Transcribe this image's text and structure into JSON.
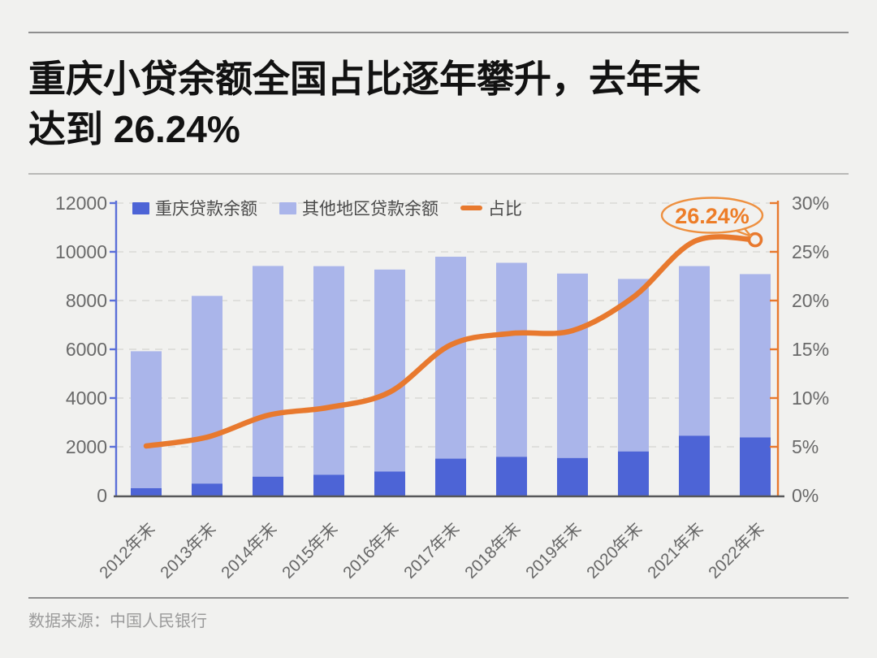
{
  "header": {
    "title_line1": "重庆小贷余额全国占比逐年攀升，去年末",
    "title_line2": "达到 26.24%"
  },
  "footer": {
    "source": "数据来源：中国人民银行"
  },
  "colors": {
    "background": "#f1f1ef",
    "bar_dark_blue": "#4d64d6",
    "bar_light_blue": "#aab5ea",
    "line_orange": "#e8792e",
    "callout_orange": "#ee9040",
    "axis_gray": "#57585a",
    "label_gray": "#696969",
    "grid_gray": "#d9d9d6"
  },
  "chart_data": {
    "type": "bar",
    "subtype": "stacked-bars-with-line-overlay",
    "categories": [
      "2012年末",
      "2013年末",
      "2014年末",
      "2015年末",
      "2016年末",
      "2017年末",
      "2018年末",
      "2019年末",
      "2020年末",
      "2021年末",
      "2022年末"
    ],
    "series": [
      {
        "name": "重庆贷款余额",
        "type": "bar",
        "stack": "total",
        "color": "#4d64d6",
        "values": [
          301,
          490,
          775,
          851,
          984,
          1514,
          1588,
          1541,
          1810,
          2454,
          2384
        ]
      },
      {
        "name": "其他地区贷款余额",
        "type": "bar",
        "stack": "total",
        "color": "#aab5ea",
        "values": [
          5620,
          7701,
          8645,
          8561,
          8289,
          8285,
          7962,
          7568,
          7078,
          6961,
          6702
        ]
      },
      {
        "name": "占比",
        "type": "line",
        "axis": "right",
        "color": "#e8792e",
        "unit": "%",
        "values": [
          5.08,
          5.98,
          8.23,
          9.04,
          10.61,
          15.45,
          16.63,
          16.92,
          20.36,
          26.07,
          26.24
        ]
      }
    ],
    "y_left": {
      "min": 0,
      "max": 12000,
      "step": 2000,
      "tick_labels": [
        "0",
        "2000",
        "4000",
        "6000",
        "8000",
        "10000",
        "12000"
      ]
    },
    "y_right": {
      "min": 0,
      "max": 30,
      "step": 5,
      "tick_labels": [
        "0%",
        "5%",
        "10%",
        "15%",
        "20%",
        "25%",
        "30%"
      ]
    },
    "annotation": {
      "label": "26.24%",
      "target_category": "2022年末"
    },
    "legend_position": "top",
    "grid": "horizontal-dashed"
  }
}
